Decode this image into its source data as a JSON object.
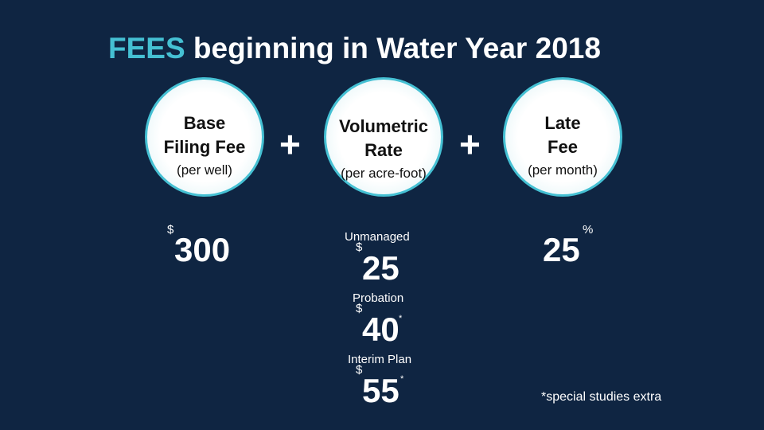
{
  "title": {
    "accent": "FEES",
    "rest": " beginning in Water Year 2018"
  },
  "operator": "+",
  "fees": [
    {
      "name_line1": "Base",
      "name_line2": "Filing Fee",
      "unit": "(per well)"
    },
    {
      "name_line1": "Volumetric",
      "name_line2": "Rate",
      "unit": "(per acre-foot)"
    },
    {
      "name_line1": "Late",
      "name_line2": "Fee",
      "unit": "(per month)"
    }
  ],
  "base_fee": {
    "currency": "$",
    "amount": "300"
  },
  "volumetric_rates": [
    {
      "label": "Unmanaged",
      "currency": "$",
      "amount": "25",
      "note_mark": ""
    },
    {
      "label": "Probation",
      "currency": "$",
      "amount": "40",
      "note_mark": "*"
    },
    {
      "label": "Interim Plan",
      "currency": "$",
      "amount": "55",
      "note_mark": "*"
    }
  ],
  "late_fee": {
    "amount": "25",
    "unit": "%"
  },
  "footnote": "*special studies extra",
  "colors": {
    "background": "#0f2542",
    "accent": "#45c0d3",
    "circle_border": "#45c0d3"
  }
}
